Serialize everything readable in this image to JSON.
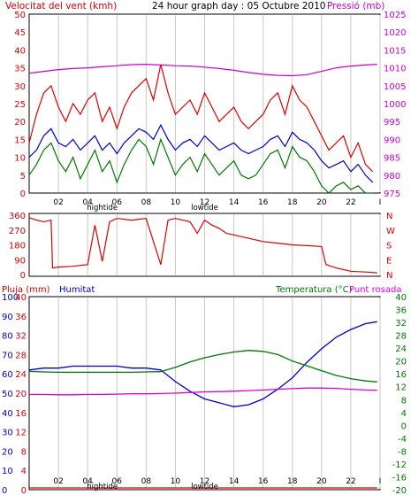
{
  "header": {
    "left_label": "Velocitat del vent (kmh)",
    "title": "24 hour graph day : 05 Octubre 2010",
    "right_label": "Pressió (mb)"
  },
  "time_ticks": [
    "02",
    "04",
    "06",
    "08",
    "10",
    "12",
    "14",
    "16",
    "18",
    "20",
    "22",
    "I"
  ],
  "tide_labels": {
    "high": "hightide",
    "low": "lowtide"
  },
  "colors": {
    "wind_speed": "#dd0000",
    "wind_avg": "#0000cc",
    "wind_low": "#007700",
    "pressure": "#cc00cc",
    "wind_dir": "#dd0000",
    "rain": "#dd0000",
    "humidity": "#0000cc",
    "temperature": "#007700",
    "dew_point": "#dd00dd",
    "grid": "#c8c8c8",
    "frame": "#000000",
    "left_axis_text": "#dd0000",
    "right_axis_text": "#cc00cc"
  },
  "chart_data": [
    {
      "type": "line",
      "name": "wind_pressure",
      "x_range_hours": [
        0,
        24
      ],
      "y_left_ticks": [
        "0",
        "5",
        "10",
        "15",
        "20",
        "25",
        "30",
        "35",
        "40",
        "45",
        "50"
      ],
      "y_right_ticks": [
        "975",
        "980",
        "985",
        "990",
        "995",
        "1000",
        "1005",
        "1010",
        "1015",
        "1020",
        "1025"
      ],
      "ylim_left": [
        0,
        50
      ],
      "ylim_right": [
        975,
        1025
      ],
      "series": [
        {
          "axis": "left",
          "x": [
            0,
            0.5,
            1,
            1.5,
            2,
            2.5,
            3,
            3.5,
            4,
            4.5,
            5,
            5.5,
            6,
            6.5,
            7,
            7.5,
            8,
            8.5,
            9,
            9.5,
            10,
            10.5,
            11,
            11.5,
            12,
            12.5,
            13,
            13.5,
            14,
            14.5,
            15,
            15.5,
            16,
            16.5,
            17,
            17.5,
            18,
            18.5,
            19,
            19.5,
            20,
            20.5,
            21,
            21.5,
            22,
            22.5,
            23,
            23.5
          ],
          "values": [
            14,
            22,
            28,
            30,
            24,
            20,
            25,
            22,
            26,
            28,
            20,
            24,
            18,
            24,
            28,
            30,
            32,
            26,
            36,
            28,
            22,
            24,
            26,
            22,
            28,
            24,
            20,
            22,
            24,
            20,
            18,
            20,
            22,
            26,
            28,
            22,
            30,
            26,
            24,
            20,
            16,
            12,
            14,
            16,
            10,
            14,
            8,
            6
          ]
        },
        {
          "axis": "left",
          "x": [
            0,
            0.5,
            1,
            1.5,
            2,
            2.5,
            3,
            3.5,
            4,
            4.5,
            5,
            5.5,
            6,
            6.5,
            7,
            7.5,
            8,
            8.5,
            9,
            9.5,
            10,
            10.5,
            11,
            11.5,
            12,
            12.5,
            13,
            13.5,
            14,
            14.5,
            15,
            15.5,
            16,
            16.5,
            17,
            17.5,
            18,
            18.5,
            19,
            19.5,
            20,
            20.5,
            21,
            21.5,
            22,
            22.5,
            23,
            23.5
          ],
          "values": [
            10,
            12,
            16,
            18,
            14,
            13,
            15,
            12,
            14,
            16,
            12,
            14,
            11,
            14,
            16,
            18,
            17,
            15,
            19,
            15,
            12,
            14,
            15,
            13,
            16,
            14,
            12,
            13,
            14,
            12,
            11,
            12,
            13,
            15,
            16,
            13,
            17,
            15,
            14,
            12,
            9,
            7,
            8,
            9,
            6,
            8,
            5,
            3
          ]
        },
        {
          "axis": "left",
          "x": [
            0,
            0.5,
            1,
            1.5,
            2,
            2.5,
            3,
            3.5,
            4,
            4.5,
            5,
            5.5,
            6,
            6.5,
            7,
            7.5,
            8,
            8.5,
            9,
            9.5,
            10,
            10.5,
            11,
            11.5,
            12,
            12.5,
            13,
            13.5,
            14,
            14.5,
            15,
            15.5,
            16,
            16.5,
            17,
            17.5,
            18,
            18.5,
            19,
            19.5,
            20,
            20.5,
            21,
            21.5,
            22,
            22.5,
            23,
            23.5
          ],
          "values": [
            5,
            8,
            12,
            14,
            9,
            6,
            10,
            4,
            8,
            12,
            6,
            9,
            3,
            8,
            12,
            15,
            13,
            8,
            15,
            10,
            5,
            8,
            10,
            6,
            11,
            8,
            5,
            7,
            9,
            5,
            4,
            5,
            8,
            11,
            12,
            7,
            13,
            10,
            9,
            6,
            2,
            0,
            2,
            3,
            1,
            2,
            0,
            0
          ]
        },
        {
          "axis": "right",
          "x": [
            0,
            1,
            2,
            3,
            4,
            5,
            6,
            7,
            8,
            9,
            10,
            11,
            12,
            13,
            14,
            15,
            16,
            17,
            18,
            19,
            20,
            21,
            22,
            23,
            23.8
          ],
          "values": [
            1008.5,
            1009,
            1009.5,
            1009.8,
            1010,
            1010.3,
            1010.6,
            1010.9,
            1011,
            1010.8,
            1010.6,
            1010.5,
            1010.2,
            1009.8,
            1009.3,
            1008.7,
            1008.2,
            1007.9,
            1007.8,
            1008.1,
            1009,
            1010,
            1010.5,
            1010.8,
            1011
          ]
        }
      ]
    },
    {
      "type": "line",
      "name": "wind_direction",
      "x_range_hours": [
        0,
        24
      ],
      "y_ticks": [
        "0",
        "90",
        "180",
        "270",
        "360"
      ],
      "ylim": [
        0,
        360
      ],
      "direction_labels": [
        "N",
        "W",
        "S",
        "E",
        "N"
      ],
      "series": [
        {
          "x": [
            0,
            0.5,
            1,
            1.5,
            1.6,
            2,
            3,
            4,
            4.5,
            5,
            5.5,
            6,
            7,
            8,
            9,
            9.5,
            10,
            11,
            11.5,
            12,
            12.5,
            13,
            13.5,
            14,
            15,
            16,
            17,
            18,
            19,
            20,
            20.3,
            21,
            22,
            23,
            23.8
          ],
          "values": [
            345,
            330,
            320,
            330,
            40,
            45,
            50,
            60,
            300,
            80,
            320,
            340,
            330,
            340,
            60,
            330,
            340,
            320,
            250,
            330,
            300,
            280,
            250,
            240,
            220,
            200,
            190,
            180,
            175,
            170,
            60,
            40,
            20,
            15,
            10
          ]
        }
      ]
    },
    {
      "type": "line",
      "name": "rain_humidity_temperature",
      "x_range_hours": [
        0,
        24
      ],
      "y_left_outer_ticks": [
        "0",
        "10",
        "20",
        "30",
        "40",
        "50",
        "60",
        "70",
        "80",
        "90",
        "100"
      ],
      "y_left_inner_ticks": [
        "0",
        "4",
        "8",
        "12",
        "16",
        "20",
        "24",
        "28",
        "32",
        "36",
        "40"
      ],
      "y_right_ticks": [
        "-20",
        "-16",
        "-12",
        "-8",
        "-4",
        "0",
        "4",
        "8",
        "12",
        "16",
        "20",
        "24",
        "28",
        "32",
        "36",
        "40"
      ],
      "ylim_humidity": [
        0,
        100
      ],
      "ylim_rain": [
        0,
        40
      ],
      "ylim_temp": [
        -20,
        40
      ],
      "labels": {
        "rain": "Pluja (mm)",
        "humidity": "Humitat",
        "temperature": "Temperatura (°C)",
        "dew_point": "Punt rosada"
      },
      "series": [
        {
          "key": "humidity",
          "x": [
            0,
            1,
            2,
            3,
            4,
            5,
            6,
            7,
            8,
            9,
            10,
            11,
            12,
            13,
            14,
            15,
            16,
            17,
            18,
            19,
            20,
            21,
            22,
            23,
            23.8
          ],
          "values": [
            62,
            63,
            63,
            64,
            64,
            64,
            64,
            63,
            63,
            62,
            56,
            51,
            47,
            45,
            43,
            44,
            47,
            52,
            58,
            66,
            73,
            79,
            83,
            86,
            87
          ]
        },
        {
          "key": "temperature",
          "x": [
            0,
            1,
            2,
            3,
            4,
            5,
            6,
            7,
            8,
            9,
            10,
            11,
            12,
            13,
            14,
            15,
            16,
            17,
            18,
            19,
            20,
            21,
            22,
            23,
            23.8
          ],
          "values": [
            16.8,
            16.6,
            16.5,
            16.5,
            16.5,
            16.5,
            16.5,
            16.5,
            16.6,
            16.7,
            18,
            19.7,
            21,
            22,
            22.8,
            23.3,
            23,
            22,
            20,
            18.5,
            17,
            15.5,
            14.5,
            13.8,
            13.5
          ]
        },
        {
          "key": "dew_point",
          "x": [
            0,
            1,
            2,
            3,
            4,
            5,
            6,
            7,
            8,
            9,
            10,
            11,
            12,
            13,
            14,
            15,
            16,
            17,
            18,
            19,
            20,
            21,
            22,
            23,
            23.8
          ],
          "values": [
            9.6,
            9.6,
            9.5,
            9.5,
            9.6,
            9.6,
            9.7,
            9.8,
            9.8,
            9.9,
            10,
            10.2,
            10.4,
            10.5,
            10.6,
            10.8,
            11,
            11.2,
            11.4,
            11.6,
            11.6,
            11.5,
            11.2,
            11,
            10.9
          ]
        },
        {
          "key": "rain",
          "x": [
            0,
            23.8
          ],
          "values": [
            0,
            0
          ]
        }
      ]
    }
  ]
}
